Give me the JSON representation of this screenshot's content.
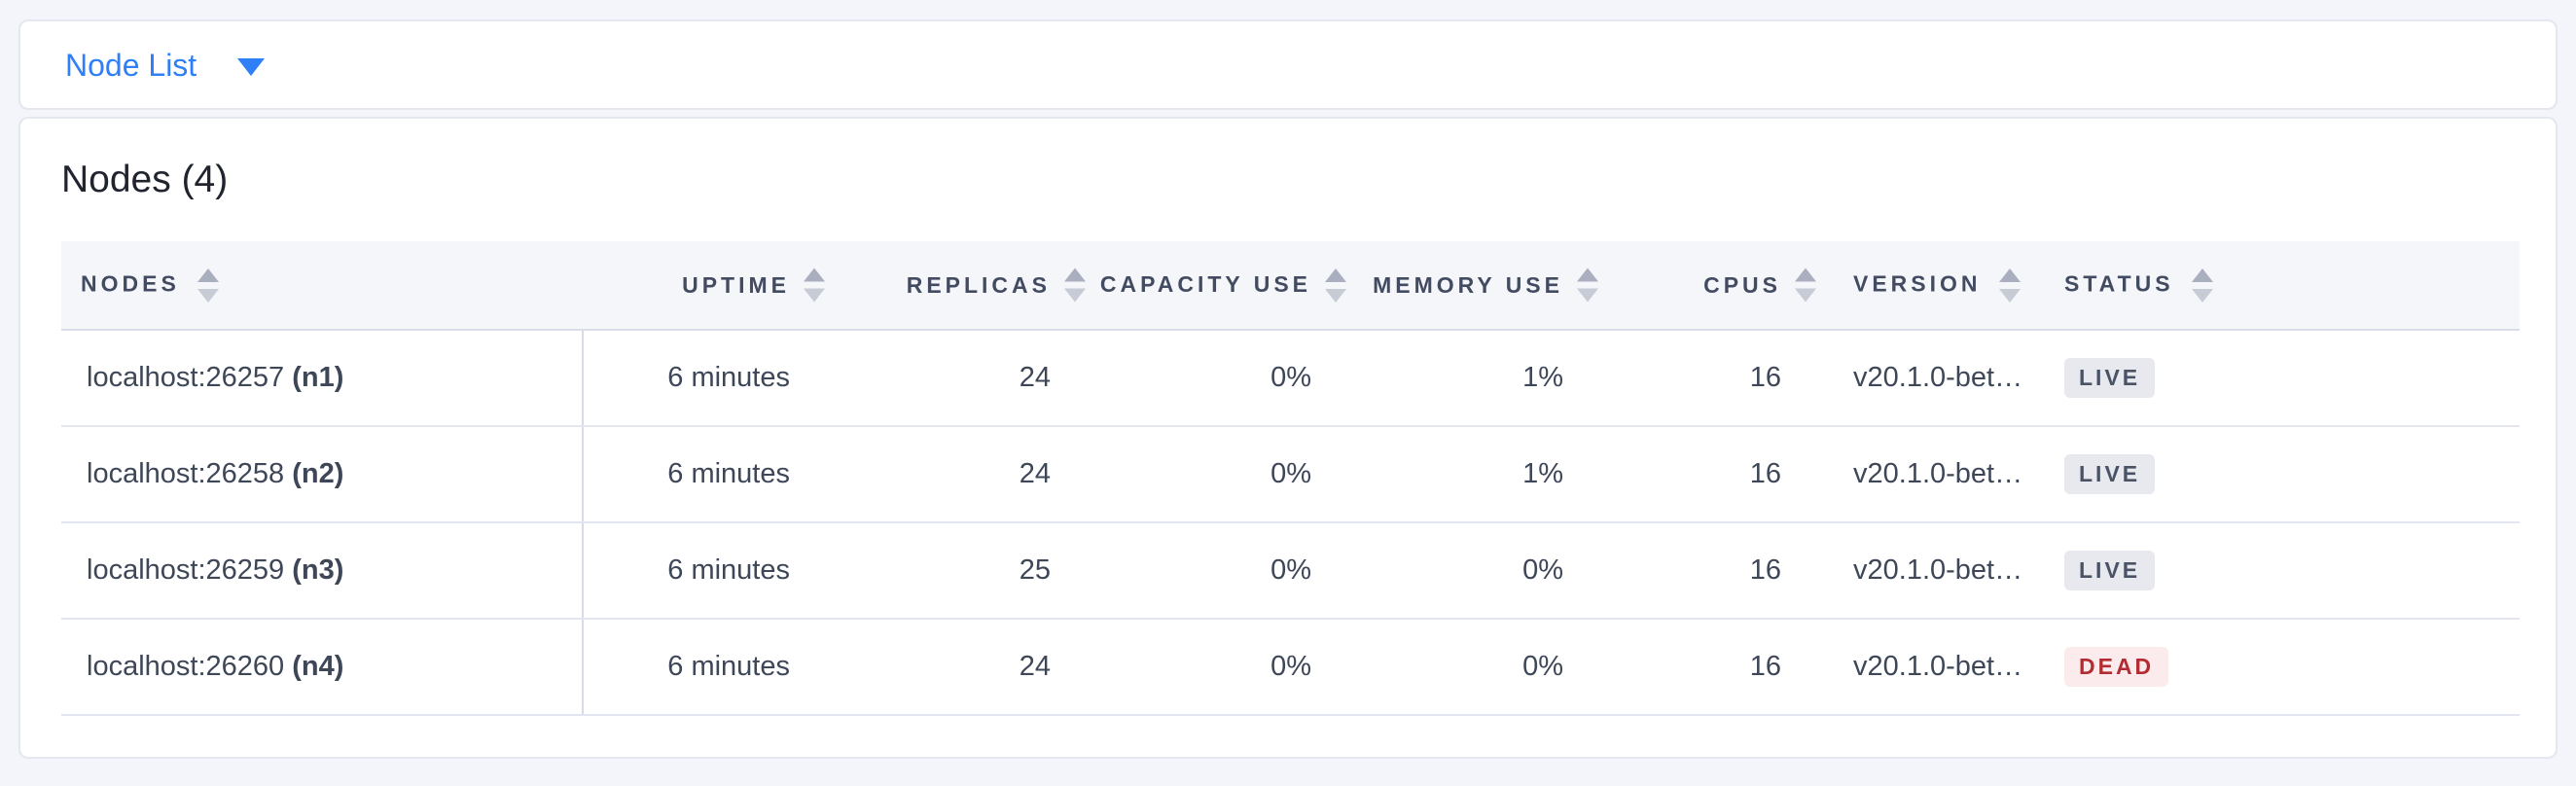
{
  "header": {
    "dropdown_label": "Node List",
    "dropdown_icon": "chevron-down-icon"
  },
  "main": {
    "title": "Nodes (4)"
  },
  "table": {
    "columns": [
      {
        "id": "nodes",
        "label": "NODES",
        "align": "left",
        "sortable": true
      },
      {
        "id": "uptime",
        "label": "UPTIME",
        "align": "right",
        "sortable": true
      },
      {
        "id": "replicas",
        "label": "REPLICAS",
        "align": "right",
        "sortable": true
      },
      {
        "id": "capacity",
        "label": "CAPACITY USE",
        "align": "right",
        "sortable": true
      },
      {
        "id": "memory",
        "label": "MEMORY USE",
        "align": "right",
        "sortable": true
      },
      {
        "id": "cpus",
        "label": "CPUS",
        "align": "right",
        "sortable": true
      },
      {
        "id": "version",
        "label": "VERSION",
        "align": "left",
        "sortable": true
      },
      {
        "id": "status",
        "label": "STATUS",
        "align": "left",
        "sortable": true
      }
    ],
    "rows": [
      {
        "address": "localhost:26257",
        "name": "(n1)",
        "uptime": "6 minutes",
        "replicas": "24",
        "capacity": "0%",
        "memory": "1%",
        "cpus": "16",
        "version": "v20.1.0-bet…",
        "status": "LIVE",
        "status_type": "live"
      },
      {
        "address": "localhost:26258",
        "name": "(n2)",
        "uptime": "6 minutes",
        "replicas": "24",
        "capacity": "0%",
        "memory": "1%",
        "cpus": "16",
        "version": "v20.1.0-bet…",
        "status": "LIVE",
        "status_type": "live"
      },
      {
        "address": "localhost:26259",
        "name": "(n3)",
        "uptime": "6 minutes",
        "replicas": "25",
        "capacity": "0%",
        "memory": "0%",
        "cpus": "16",
        "version": "v20.1.0-bet…",
        "status": "LIVE",
        "status_type": "live"
      },
      {
        "address": "localhost:26260",
        "name": "(n4)",
        "uptime": "6 minutes",
        "replicas": "24",
        "capacity": "0%",
        "memory": "0%",
        "cpus": "16",
        "version": "v20.1.0-bet…",
        "status": "DEAD",
        "status_type": "dead"
      }
    ]
  },
  "colors": {
    "accent_blue": "#2f80f7",
    "page_background": "#f4f5fa",
    "header_row_background": "#f5f6f9",
    "header_text": "#424b61",
    "body_text": "#3e4758",
    "live_badge_background": "#e7e9ef",
    "live_badge_text": "#4a5366",
    "dead_badge_background": "#fcebec",
    "dead_badge_text": "#b32c31"
  }
}
